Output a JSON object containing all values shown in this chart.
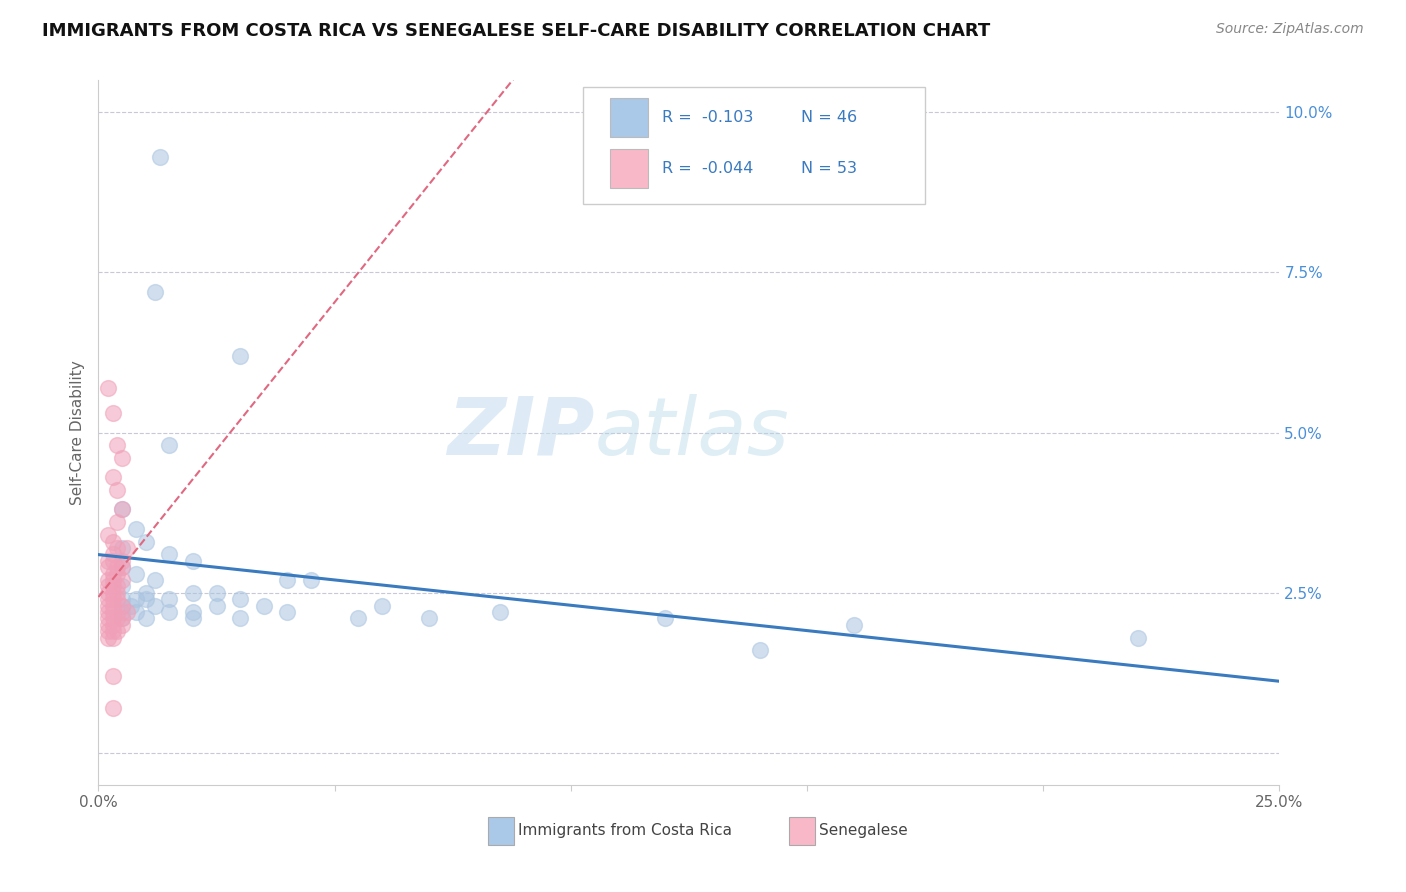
{
  "title": "IMMIGRANTS FROM COSTA RICA VS SENEGALESE SELF-CARE DISABILITY CORRELATION CHART",
  "source": "Source: ZipAtlas.com",
  "ylabel": "Self-Care Disability",
  "xlim": [
    0.0,
    0.25
  ],
  "ylim": [
    -0.005,
    0.105
  ],
  "yticks": [
    0.0,
    0.025,
    0.05,
    0.075,
    0.1
  ],
  "ytick_labels": [
    "",
    "2.5%",
    "5.0%",
    "7.5%",
    "10.0%"
  ],
  "xticks": [
    0.0,
    0.05,
    0.1,
    0.15,
    0.2,
    0.25
  ],
  "xtick_labels": [
    "0.0%",
    "",
    "",
    "",
    "",
    "25.0%"
  ],
  "legend_r1": "R =  -0.103",
  "legend_n1": "N = 46",
  "legend_r2": "R =  -0.044",
  "legend_n2": "N = 53",
  "legend_label1": "Immigrants from Costa Rica",
  "legend_label2": "Senegalese",
  "blue_color": "#aac4e0",
  "pink_color": "#f0a0b8",
  "blue_line_color": "#3a7abf",
  "pink_line_color": "#e06880",
  "blue_legend_color": "#aac8e8",
  "pink_legend_color": "#f8b8c8",
  "watermark_zip": "ZIP",
  "watermark_atlas": "atlas",
  "background_color": "#ffffff",
  "grid_color": "#c8c8d8",
  "blue_scatter": [
    [
      0.013,
      0.093
    ],
    [
      0.012,
      0.072
    ],
    [
      0.03,
      0.062
    ],
    [
      0.015,
      0.048
    ],
    [
      0.005,
      0.038
    ],
    [
      0.008,
      0.035
    ],
    [
      0.01,
      0.033
    ],
    [
      0.005,
      0.032
    ],
    [
      0.015,
      0.031
    ],
    [
      0.02,
      0.03
    ],
    [
      0.005,
      0.029
    ],
    [
      0.008,
      0.028
    ],
    [
      0.012,
      0.027
    ],
    [
      0.04,
      0.027
    ],
    [
      0.045,
      0.027
    ],
    [
      0.005,
      0.026
    ],
    [
      0.01,
      0.025
    ],
    [
      0.02,
      0.025
    ],
    [
      0.025,
      0.025
    ],
    [
      0.005,
      0.024
    ],
    [
      0.008,
      0.024
    ],
    [
      0.01,
      0.024
    ],
    [
      0.015,
      0.024
    ],
    [
      0.03,
      0.024
    ],
    [
      0.005,
      0.023
    ],
    [
      0.007,
      0.023
    ],
    [
      0.012,
      0.023
    ],
    [
      0.025,
      0.023
    ],
    [
      0.035,
      0.023
    ],
    [
      0.06,
      0.023
    ],
    [
      0.005,
      0.022
    ],
    [
      0.008,
      0.022
    ],
    [
      0.015,
      0.022
    ],
    [
      0.02,
      0.022
    ],
    [
      0.04,
      0.022
    ],
    [
      0.085,
      0.022
    ],
    [
      0.005,
      0.021
    ],
    [
      0.01,
      0.021
    ],
    [
      0.02,
      0.021
    ],
    [
      0.03,
      0.021
    ],
    [
      0.055,
      0.021
    ],
    [
      0.07,
      0.021
    ],
    [
      0.12,
      0.021
    ],
    [
      0.16,
      0.02
    ],
    [
      0.22,
      0.018
    ],
    [
      0.14,
      0.016
    ]
  ],
  "pink_scatter": [
    [
      0.002,
      0.057
    ],
    [
      0.003,
      0.053
    ],
    [
      0.004,
      0.048
    ],
    [
      0.005,
      0.046
    ],
    [
      0.003,
      0.043
    ],
    [
      0.004,
      0.041
    ],
    [
      0.005,
      0.038
    ],
    [
      0.004,
      0.036
    ],
    [
      0.002,
      0.034
    ],
    [
      0.003,
      0.033
    ],
    [
      0.004,
      0.032
    ],
    [
      0.006,
      0.032
    ],
    [
      0.003,
      0.031
    ],
    [
      0.002,
      0.03
    ],
    [
      0.003,
      0.03
    ],
    [
      0.005,
      0.03
    ],
    [
      0.002,
      0.029
    ],
    [
      0.004,
      0.029
    ],
    [
      0.005,
      0.029
    ],
    [
      0.003,
      0.028
    ],
    [
      0.004,
      0.028
    ],
    [
      0.002,
      0.027
    ],
    [
      0.003,
      0.027
    ],
    [
      0.005,
      0.027
    ],
    [
      0.002,
      0.026
    ],
    [
      0.003,
      0.026
    ],
    [
      0.004,
      0.026
    ],
    [
      0.002,
      0.025
    ],
    [
      0.003,
      0.025
    ],
    [
      0.004,
      0.025
    ],
    [
      0.002,
      0.024
    ],
    [
      0.003,
      0.024
    ],
    [
      0.004,
      0.024
    ],
    [
      0.002,
      0.023
    ],
    [
      0.003,
      0.023
    ],
    [
      0.005,
      0.023
    ],
    [
      0.002,
      0.022
    ],
    [
      0.003,
      0.022
    ],
    [
      0.006,
      0.022
    ],
    [
      0.002,
      0.021
    ],
    [
      0.003,
      0.021
    ],
    [
      0.004,
      0.021
    ],
    [
      0.005,
      0.021
    ],
    [
      0.002,
      0.02
    ],
    [
      0.003,
      0.02
    ],
    [
      0.005,
      0.02
    ],
    [
      0.002,
      0.019
    ],
    [
      0.003,
      0.019
    ],
    [
      0.004,
      0.019
    ],
    [
      0.002,
      0.018
    ],
    [
      0.003,
      0.018
    ],
    [
      0.003,
      0.012
    ],
    [
      0.003,
      0.007
    ]
  ]
}
